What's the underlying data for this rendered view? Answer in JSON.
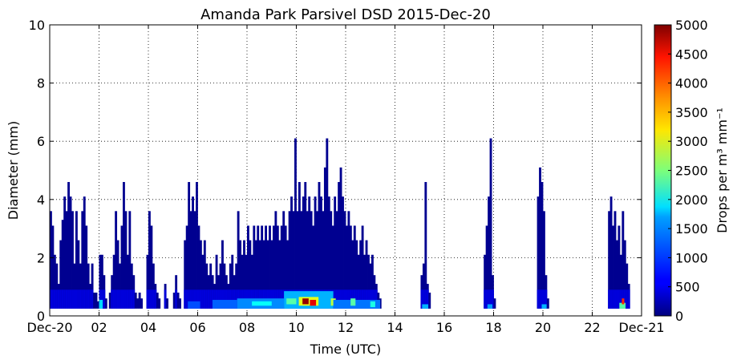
{
  "chart_data": {
    "type": "heatmap",
    "title": "Amanda Park Parsivel DSD 2015-Dec-20",
    "xlabel": "Time (UTC)",
    "ylabel": "Diameter (mm)",
    "colorbar_label": "Drops per m³ mm⁻¹",
    "colormap": "jet",
    "xlim": [
      0,
      24
    ],
    "ylim": [
      0,
      10
    ],
    "clim": [
      0,
      5000
    ],
    "grid": true,
    "x_ticks": [
      {
        "value": 0,
        "label": "Dec-20"
      },
      {
        "value": 2,
        "label": "02"
      },
      {
        "value": 4,
        "label": "04"
      },
      {
        "value": 6,
        "label": "06"
      },
      {
        "value": 8,
        "label": "08"
      },
      {
        "value": 10,
        "label": "10"
      },
      {
        "value": 12,
        "label": "12"
      },
      {
        "value": 14,
        "label": "14"
      },
      {
        "value": 16,
        "label": "16"
      },
      {
        "value": 18,
        "label": "18"
      },
      {
        "value": 20,
        "label": "20"
      },
      {
        "value": 22,
        "label": "22"
      },
      {
        "value": 24,
        "label": "Dec-21"
      }
    ],
    "y_ticks": [
      {
        "value": 0,
        "label": "0"
      },
      {
        "value": 2,
        "label": "2"
      },
      {
        "value": 4,
        "label": "4"
      },
      {
        "value": 6,
        "label": "6"
      },
      {
        "value": 8,
        "label": "8"
      },
      {
        "value": 10,
        "label": "10"
      }
    ],
    "colorbar_ticks": [
      {
        "value": 0,
        "label": "0"
      },
      {
        "value": 500,
        "label": "500"
      },
      {
        "value": 1000,
        "label": "1000"
      },
      {
        "value": 1500,
        "label": "1500"
      },
      {
        "value": 2000,
        "label": "2000"
      },
      {
        "value": 2500,
        "label": "2500"
      },
      {
        "value": 3000,
        "label": "3000"
      },
      {
        "value": 3500,
        "label": "3500"
      },
      {
        "value": 4000,
        "label": "4000"
      },
      {
        "value": 4500,
        "label": "4500"
      },
      {
        "value": 5000,
        "label": "5000"
      }
    ],
    "rain_columns": [
      {
        "t": 0.0,
        "top": 3.6
      },
      {
        "t": 0.08,
        "top": 3.1
      },
      {
        "t": 0.16,
        "top": 2.1
      },
      {
        "t": 0.24,
        "top": 1.8
      },
      {
        "t": 0.32,
        "top": 1.1
      },
      {
        "t": 0.4,
        "top": 2.6
      },
      {
        "t": 0.48,
        "top": 3.3
      },
      {
        "t": 0.56,
        "top": 4.1
      },
      {
        "t": 0.64,
        "top": 3.6
      },
      {
        "t": 0.72,
        "top": 4.6
      },
      {
        "t": 0.8,
        "top": 4.1
      },
      {
        "t": 0.88,
        "top": 3.6
      },
      {
        "t": 0.96,
        "top": 1.8
      },
      {
        "t": 1.04,
        "top": 3.6
      },
      {
        "t": 1.12,
        "top": 2.6
      },
      {
        "t": 1.2,
        "top": 1.8
      },
      {
        "t": 1.28,
        "top": 3.6
      },
      {
        "t": 1.36,
        "top": 4.1
      },
      {
        "t": 1.44,
        "top": 3.1
      },
      {
        "t": 1.52,
        "top": 1.8
      },
      {
        "t": 1.6,
        "top": 1.1
      },
      {
        "t": 1.68,
        "top": 1.8
      },
      {
        "t": 1.76,
        "top": 0.8
      },
      {
        "t": 1.84,
        "top": 0.8
      },
      {
        "t": 1.92,
        "top": 0.5
      },
      {
        "t": 2.0,
        "top": 2.1
      },
      {
        "t": 2.08,
        "top": 2.1
      },
      {
        "t": 2.16,
        "top": 1.4
      },
      {
        "t": 2.24,
        "top": 0.6
      },
      {
        "t": 2.4,
        "top": 0.8
      },
      {
        "t": 2.48,
        "top": 1.4
      },
      {
        "t": 2.56,
        "top": 2.1
      },
      {
        "t": 2.64,
        "top": 3.6
      },
      {
        "t": 2.72,
        "top": 2.6
      },
      {
        "t": 2.8,
        "top": 1.8
      },
      {
        "t": 2.88,
        "top": 3.1
      },
      {
        "t": 2.96,
        "top": 4.6
      },
      {
        "t": 3.04,
        "top": 3.6
      },
      {
        "t": 3.12,
        "top": 2.1
      },
      {
        "t": 3.2,
        "top": 3.6
      },
      {
        "t": 3.28,
        "top": 1.8
      },
      {
        "t": 3.36,
        "top": 1.4
      },
      {
        "t": 3.44,
        "top": 0.8
      },
      {
        "t": 3.52,
        "top": 0.6
      },
      {
        "t": 3.6,
        "top": 0.8
      },
      {
        "t": 3.68,
        "top": 0.6
      },
      {
        "t": 3.92,
        "top": 2.1
      },
      {
        "t": 4.0,
        "top": 3.6
      },
      {
        "t": 4.08,
        "top": 3.1
      },
      {
        "t": 4.16,
        "top": 1.8
      },
      {
        "t": 4.24,
        "top": 1.1
      },
      {
        "t": 4.32,
        "top": 0.8
      },
      {
        "t": 4.4,
        "top": 0.6
      },
      {
        "t": 4.64,
        "top": 1.1
      },
      {
        "t": 4.72,
        "top": 0.6
      },
      {
        "t": 5.0,
        "top": 0.8
      },
      {
        "t": 5.08,
        "top": 1.4
      },
      {
        "t": 5.16,
        "top": 0.8
      },
      {
        "t": 5.24,
        "top": 0.6
      },
      {
        "t": 5.44,
        "top": 2.6
      },
      {
        "t": 5.52,
        "top": 3.1
      },
      {
        "t": 5.6,
        "top": 4.6
      },
      {
        "t": 5.68,
        "top": 3.6
      },
      {
        "t": 5.76,
        "top": 4.1
      },
      {
        "t": 5.84,
        "top": 3.6
      },
      {
        "t": 5.92,
        "top": 4.6
      },
      {
        "t": 6.0,
        "top": 3.1
      },
      {
        "t": 6.08,
        "top": 2.6
      },
      {
        "t": 6.16,
        "top": 2.1
      },
      {
        "t": 6.24,
        "top": 2.6
      },
      {
        "t": 6.32,
        "top": 1.8
      },
      {
        "t": 6.4,
        "top": 1.4
      },
      {
        "t": 6.48,
        "top": 1.8
      },
      {
        "t": 6.56,
        "top": 1.4
      },
      {
        "t": 6.64,
        "top": 1.1
      },
      {
        "t": 6.72,
        "top": 2.1
      },
      {
        "t": 6.8,
        "top": 1.4
      },
      {
        "t": 6.88,
        "top": 1.8
      },
      {
        "t": 6.96,
        "top": 2.6
      },
      {
        "t": 7.04,
        "top": 1.8
      },
      {
        "t": 7.12,
        "top": 1.4
      },
      {
        "t": 7.2,
        "top": 1.1
      },
      {
        "t": 7.28,
        "top": 1.8
      },
      {
        "t": 7.36,
        "top": 2.1
      },
      {
        "t": 7.44,
        "top": 1.4
      },
      {
        "t": 7.52,
        "top": 1.8
      },
      {
        "t": 7.6,
        "top": 3.6
      },
      {
        "t": 7.68,
        "top": 2.6
      },
      {
        "t": 7.76,
        "top": 2.1
      },
      {
        "t": 7.84,
        "top": 2.6
      },
      {
        "t": 7.92,
        "top": 2.1
      },
      {
        "t": 8.0,
        "top": 3.1
      },
      {
        "t": 8.08,
        "top": 2.6
      },
      {
        "t": 8.16,
        "top": 2.1
      },
      {
        "t": 8.24,
        "top": 3.1
      },
      {
        "t": 8.32,
        "top": 2.6
      },
      {
        "t": 8.4,
        "top": 3.1
      },
      {
        "t": 8.48,
        "top": 2.6
      },
      {
        "t": 8.56,
        "top": 3.1
      },
      {
        "t": 8.64,
        "top": 2.6
      },
      {
        "t": 8.72,
        "top": 3.1
      },
      {
        "t": 8.8,
        "top": 2.6
      },
      {
        "t": 8.88,
        "top": 3.1
      },
      {
        "t": 8.96,
        "top": 2.6
      },
      {
        "t": 9.04,
        "top": 3.1
      },
      {
        "t": 9.12,
        "top": 3.6
      },
      {
        "t": 9.2,
        "top": 3.1
      },
      {
        "t": 9.28,
        "top": 2.6
      },
      {
        "t": 9.36,
        "top": 3.1
      },
      {
        "t": 9.44,
        "top": 3.6
      },
      {
        "t": 9.52,
        "top": 3.1
      },
      {
        "t": 9.6,
        "top": 2.6
      },
      {
        "t": 9.68,
        "top": 3.6
      },
      {
        "t": 9.76,
        "top": 4.1
      },
      {
        "t": 9.84,
        "top": 3.6
      },
      {
        "t": 9.92,
        "top": 6.1
      },
      {
        "t": 10.0,
        "top": 3.6
      },
      {
        "t": 10.08,
        "top": 4.6
      },
      {
        "t": 10.16,
        "top": 3.6
      },
      {
        "t": 10.24,
        "top": 4.1
      },
      {
        "t": 10.32,
        "top": 4.6
      },
      {
        "t": 10.4,
        "top": 3.6
      },
      {
        "t": 10.48,
        "top": 4.1
      },
      {
        "t": 10.56,
        "top": 3.6
      },
      {
        "t": 10.64,
        "top": 3.1
      },
      {
        "t": 10.72,
        "top": 4.1
      },
      {
        "t": 10.8,
        "top": 3.6
      },
      {
        "t": 10.88,
        "top": 4.6
      },
      {
        "t": 10.96,
        "top": 4.1
      },
      {
        "t": 11.04,
        "top": 3.6
      },
      {
        "t": 11.12,
        "top": 5.1
      },
      {
        "t": 11.2,
        "top": 6.1
      },
      {
        "t": 11.28,
        "top": 4.1
      },
      {
        "t": 11.36,
        "top": 3.6
      },
      {
        "t": 11.44,
        "top": 3.1
      },
      {
        "t": 11.52,
        "top": 4.1
      },
      {
        "t": 11.6,
        "top": 3.6
      },
      {
        "t": 11.68,
        "top": 4.6
      },
      {
        "t": 11.76,
        "top": 5.1
      },
      {
        "t": 11.84,
        "top": 4.1
      },
      {
        "t": 11.92,
        "top": 3.6
      },
      {
        "t": 12.0,
        "top": 3.1
      },
      {
        "t": 12.08,
        "top": 3.6
      },
      {
        "t": 12.16,
        "top": 3.1
      },
      {
        "t": 12.24,
        "top": 2.6
      },
      {
        "t": 12.32,
        "top": 3.1
      },
      {
        "t": 12.4,
        "top": 2.6
      },
      {
        "t": 12.48,
        "top": 2.1
      },
      {
        "t": 12.56,
        "top": 2.6
      },
      {
        "t": 12.64,
        "top": 3.1
      },
      {
        "t": 12.72,
        "top": 2.1
      },
      {
        "t": 12.8,
        "top": 2.6
      },
      {
        "t": 12.88,
        "top": 2.1
      },
      {
        "t": 12.96,
        "top": 1.8
      },
      {
        "t": 13.04,
        "top": 2.1
      },
      {
        "t": 13.12,
        "top": 1.4
      },
      {
        "t": 13.2,
        "top": 1.1
      },
      {
        "t": 13.28,
        "top": 0.8
      },
      {
        "t": 13.36,
        "top": 0.6
      },
      {
        "t": 15.04,
        "top": 1.4
      },
      {
        "t": 15.12,
        "top": 1.8
      },
      {
        "t": 15.2,
        "top": 4.6
      },
      {
        "t": 15.28,
        "top": 1.1
      },
      {
        "t": 15.36,
        "top": 0.8
      },
      {
        "t": 17.6,
        "top": 2.1
      },
      {
        "t": 17.68,
        "top": 3.1
      },
      {
        "t": 17.76,
        "top": 4.1
      },
      {
        "t": 17.84,
        "top": 6.1
      },
      {
        "t": 17.92,
        "top": 1.4
      },
      {
        "t": 18.0,
        "top": 0.6
      },
      {
        "t": 19.76,
        "top": 4.1
      },
      {
        "t": 19.84,
        "top": 5.1
      },
      {
        "t": 19.92,
        "top": 4.6
      },
      {
        "t": 20.0,
        "top": 3.6
      },
      {
        "t": 20.08,
        "top": 1.4
      },
      {
        "t": 20.16,
        "top": 0.6
      },
      {
        "t": 22.64,
        "top": 3.6
      },
      {
        "t": 22.72,
        "top": 4.1
      },
      {
        "t": 22.8,
        "top": 3.1
      },
      {
        "t": 22.88,
        "top": 3.6
      },
      {
        "t": 22.96,
        "top": 2.6
      },
      {
        "t": 23.04,
        "top": 3.1
      },
      {
        "t": 23.12,
        "top": 2.1
      },
      {
        "t": 23.2,
        "top": 3.6
      },
      {
        "t": 23.28,
        "top": 2.6
      },
      {
        "t": 23.36,
        "top": 1.8
      },
      {
        "t": 23.44,
        "top": 1.1
      }
    ],
    "hot_cells": [
      {
        "t0": 2.0,
        "t1": 2.15,
        "d0": 0.25,
        "d1": 0.55,
        "value": 1700
      },
      {
        "t0": 5.6,
        "t1": 6.1,
        "d0": 0.25,
        "d1": 0.5,
        "value": 1000
      },
      {
        "t0": 6.6,
        "t1": 7.6,
        "d0": 0.25,
        "d1": 0.55,
        "value": 1100
      },
      {
        "t0": 7.6,
        "t1": 9.5,
        "d0": 0.25,
        "d1": 0.6,
        "value": 1300
      },
      {
        "t0": 8.2,
        "t1": 9.0,
        "d0": 0.35,
        "d1": 0.5,
        "value": 1900
      },
      {
        "t0": 9.5,
        "t1": 11.5,
        "d0": 0.25,
        "d1": 0.85,
        "value": 1500
      },
      {
        "t0": 9.6,
        "t1": 10.0,
        "d0": 0.4,
        "d1": 0.6,
        "value": 2300
      },
      {
        "t0": 10.1,
        "t1": 10.9,
        "d0": 0.35,
        "d1": 0.65,
        "value": 3000
      },
      {
        "t0": 10.25,
        "t1": 10.5,
        "d0": 0.4,
        "d1": 0.6,
        "value": 4900
      },
      {
        "t0": 10.55,
        "t1": 10.8,
        "d0": 0.35,
        "d1": 0.55,
        "value": 4500
      },
      {
        "t0": 11.4,
        "t1": 11.6,
        "d0": 0.35,
        "d1": 0.6,
        "value": 2800
      },
      {
        "t0": 11.5,
        "t1": 13.4,
        "d0": 0.25,
        "d1": 0.55,
        "value": 1200
      },
      {
        "t0": 12.2,
        "t1": 12.4,
        "d0": 0.35,
        "d1": 0.6,
        "value": 2300
      },
      {
        "t0": 13.0,
        "t1": 13.2,
        "d0": 0.3,
        "d1": 0.5,
        "value": 2000
      },
      {
        "t0": 15.1,
        "t1": 15.35,
        "d0": 0.25,
        "d1": 0.4,
        "value": 1500
      },
      {
        "t0": 17.75,
        "t1": 17.95,
        "d0": 0.25,
        "d1": 0.4,
        "value": 1400
      },
      {
        "t0": 19.95,
        "t1": 20.15,
        "d0": 0.25,
        "d1": 0.4,
        "value": 1500
      },
      {
        "t0": 23.1,
        "t1": 23.35,
        "d0": 0.25,
        "d1": 0.45,
        "value": 2300
      },
      {
        "t0": 23.2,
        "t1": 23.3,
        "d0": 0.4,
        "d1": 0.6,
        "value": 4200
      }
    ]
  }
}
